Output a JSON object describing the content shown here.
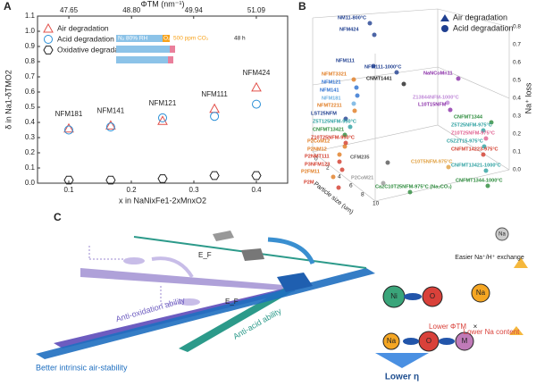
{
  "panels": [
    "A",
    "B",
    "C"
  ],
  "chart_data": {
    "type": "scatter",
    "xlabel": "x in NaNixFe1-2xMnxO2",
    "ylabel": "δ in Na1-δTMO2",
    "x2label": "ΦTM (nm⁻¹)",
    "x": [
      0.1,
      0.167,
      0.25,
      0.333,
      0.4
    ],
    "point_labels": [
      "NFM181",
      "NFM141",
      "NFM121",
      "NFM111",
      "NFM424"
    ],
    "series": [
      {
        "name": "Air degradation",
        "color": "#e2504a",
        "marker": "triangle",
        "values": [
          0.36,
          0.38,
          0.41,
          0.49,
          0.63
        ]
      },
      {
        "name": "Acid degradation",
        "color": "#2a8fd6",
        "marker": "circle",
        "values": [
          0.35,
          0.37,
          0.43,
          0.44,
          0.52
        ]
      },
      {
        "name": "Oxidative degradation",
        "color": "#222",
        "marker": "hexagon",
        "values": [
          0.02,
          0.02,
          0.03,
          0.05,
          0.05
        ]
      }
    ],
    "xlim": [
      0.05,
      0.45
    ],
    "xticks": [
      0.1,
      0.2,
      0.3,
      0.4
    ],
    "x2lim": [
      47.075,
      51.665
    ],
    "x2ticks": [
      47.65,
      {
        "value": 48.8,
        "label": "48.80"
      },
      49.94,
      51.09
    ],
    "ylim": [
      0,
      1.1
    ],
    "yticks": [
      {
        "value": 0,
        "label": "0.0"
      },
      0.1,
      0.2,
      0.3,
      0.4,
      0.5,
      0.6,
      0.7,
      0.8,
      0.9,
      {
        "value": 1,
        "label": "1.0"
      },
      1.1
    ],
    "legend": "top-left",
    "inset": [
      "N₂ 80% RH",
      "O₂",
      "500 ppm CO₂",
      "48 h"
    ]
  },
  "panel_b": {
    "legend": [
      "Air degradation",
      "Acid degradation"
    ],
    "xlabel": "Particle size (um)",
    "zlabel": "Na⁺ loss",
    "xticks": [
      "0",
      "2",
      "4",
      "6",
      "8",
      "10"
    ],
    "zticks": [
      "0.0",
      "0.1",
      "0.2",
      "0.3",
      "0.4",
      "0.5",
      "0.6",
      "0.7",
      "0.8"
    ],
    "labels": [
      "NM11-800°C",
      "NFM424",
      "NFM111",
      "NFM111-1000°C",
      "NaNCoMn11",
      "CNMT1441",
      "NFMT3321",
      "NFM121",
      "NFM141",
      "NFM181",
      "Z13844NFM-1000°C",
      "NFMT2211",
      "L10T15NFM",
      "LST25NFM",
      "Z5T125NFM-950°C",
      "CNFMT13421",
      "Z10T25NFM-950°C",
      "CNFMT1344",
      "Z5T25NFM-975°C",
      "Z10T25NFM-975°C",
      "C5Z2T15-975°C",
      "CNFMT14223-975°C",
      "CNFMT13421-1000°C",
      "C10T5NFM-975°C",
      "CNFMT1344-1000°C",
      "Ca2C10T25NFM-975°C (Na₂CO₃)",
      "P2CoM12",
      "P2NM12",
      "P2NMT111",
      "P3NFM123",
      "P2FM11",
      "P2M",
      "CFM235",
      "P2CoM21"
    ]
  },
  "panel_c": {
    "ef": [
      "E_F",
      "E_F"
    ],
    "arrows": [
      "Anti-oxidation ability",
      "Anti-acid ability",
      "Better intrinsic air-stability"
    ],
    "exchange": "Easier Na⁺/H⁺ exchange",
    "atoms": [
      "Ni",
      "O",
      "Na",
      "Na",
      "O",
      "M",
      "Na"
    ],
    "lower_phi": "Lower ΦTM",
    "times": "×",
    "lower_na": "Lower Na content",
    "result": "Lower η"
  }
}
